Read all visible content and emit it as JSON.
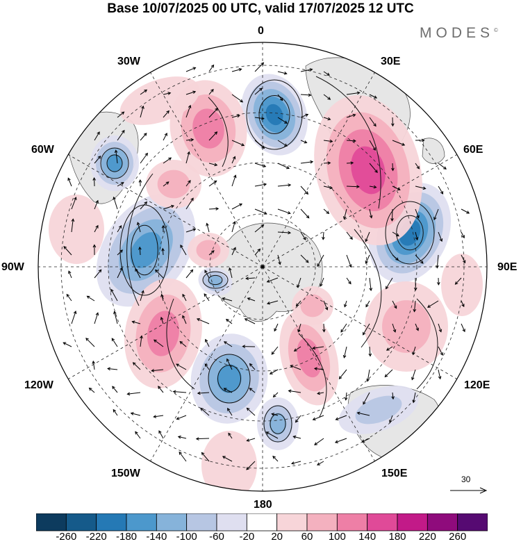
{
  "title": "Base 10/07/2025 00 UTC, valid 17/07/2025 12 UTC",
  "brand": "MODES",
  "brand_mark": "©",
  "projection": "south-polar-stereographic",
  "longitude_labels": {
    "lon_0": "0",
    "lon_30e": "30E",
    "lon_60e": "60E",
    "lon_90e": "90E",
    "lon_120e": "120E",
    "lon_150e": "150E",
    "lon_180": "180",
    "lon_150w": "150W",
    "lon_120w": "120W",
    "lon_90w": "90W",
    "lon_60w": "60W",
    "lon_30w": "30W"
  },
  "wind_reference": {
    "value": "30"
  },
  "colorbar": {
    "ticks": [
      "-260",
      "-220",
      "-180",
      "-140",
      "-100",
      "-60",
      "-20",
      "20",
      "60",
      "100",
      "140",
      "180",
      "220",
      "260"
    ],
    "colors": [
      "#0d3b5e",
      "#155a8a",
      "#2579b5",
      "#4c98cc",
      "#86b3da",
      "#b7c6e3",
      "#dfdff0",
      "#ffffff",
      "#f7d5d9",
      "#f4b1bf",
      "#ee7fa6",
      "#e04a98",
      "#c21a88",
      "#8f0b7c",
      "#560a72"
    ]
  },
  "anomaly_colors": {
    "strong_blue": "#2579b5",
    "blue": "#4c98cc",
    "light_blue": "#86b3da",
    "pale_blue": "#b7c6e3",
    "faint_blue": "#dfdff0",
    "pale_pink": "#f7d5d9",
    "pink": "#f4b1bf",
    "mid_pink": "#ee7fa6",
    "magenta": "#e04a98",
    "land": "#e6e6e6"
  }
}
